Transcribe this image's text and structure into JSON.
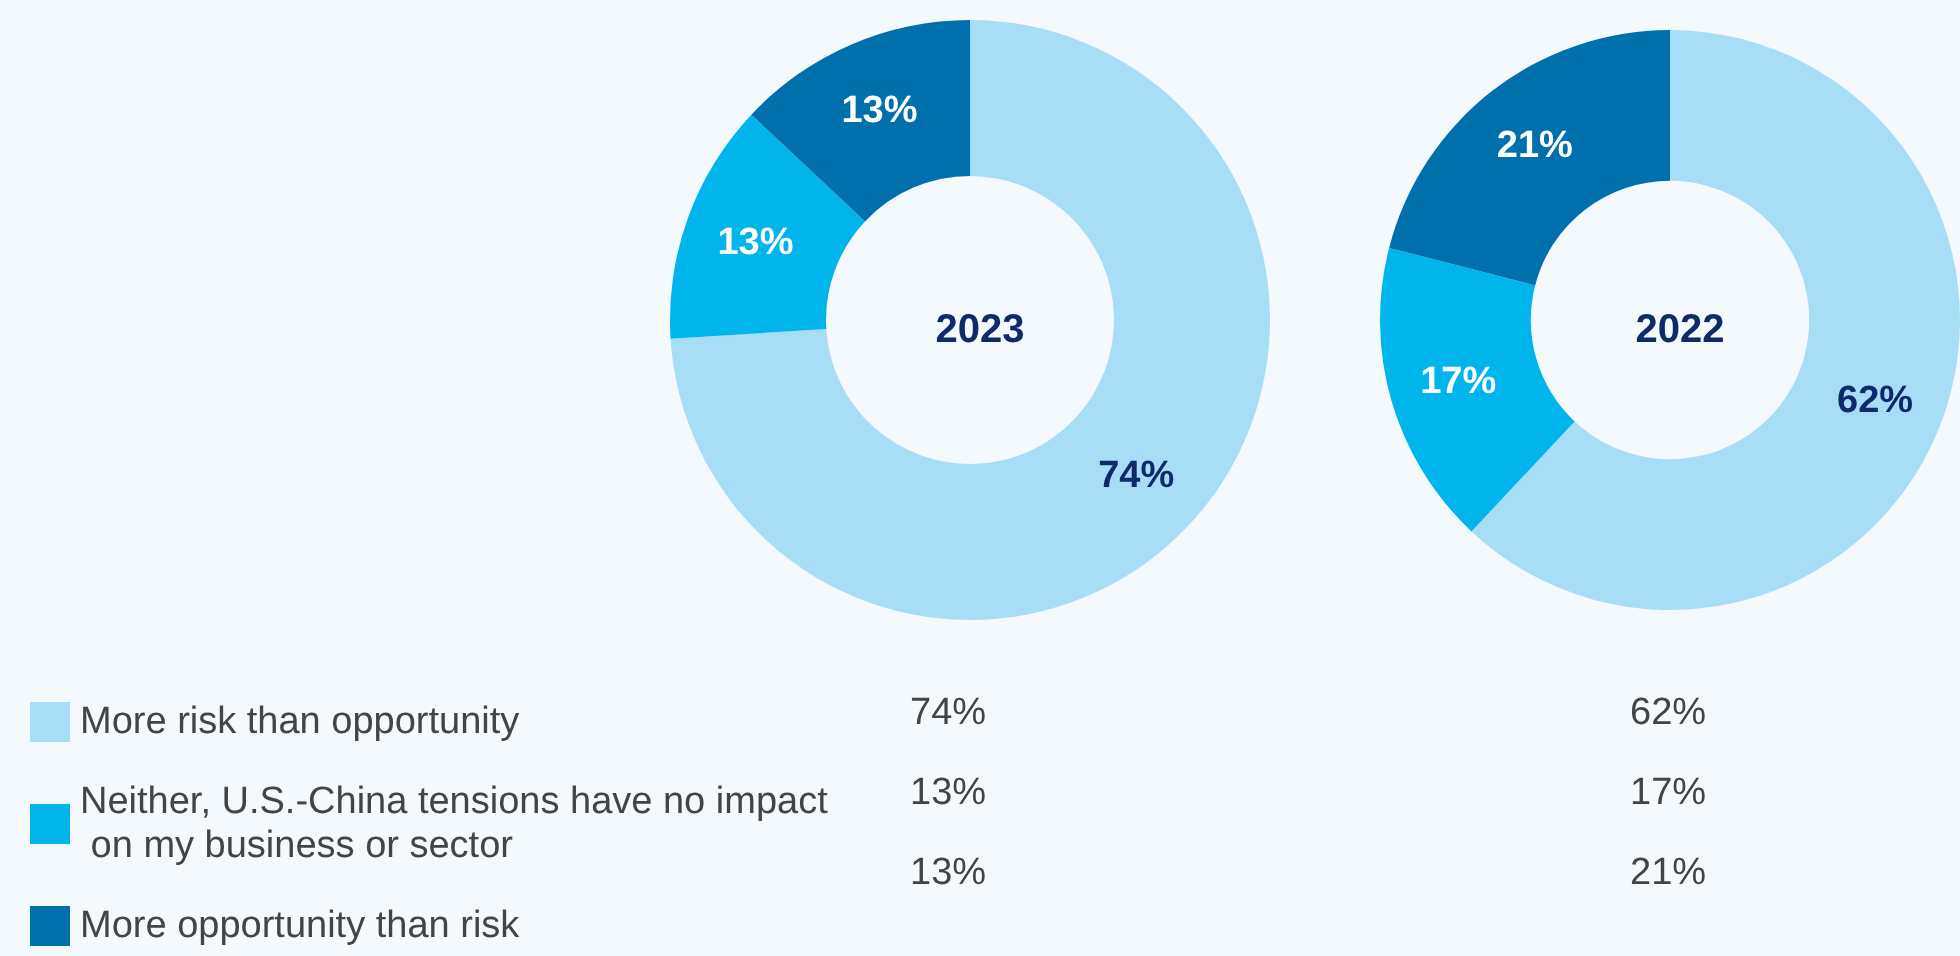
{
  "chart_data": {
    "type": "donut",
    "categories": [
      "More risk than opportunity",
      "Neither, U.S.-China tensions have no impact on my business or sector",
      "More opportunity than risk"
    ],
    "colors": [
      "#a8ddf7",
      "#00b5eb",
      "#0070ad"
    ],
    "legend": "bottom left",
    "series": [
      {
        "name": "2023",
        "values": [
          74,
          13,
          13
        ],
        "value_labels": [
          "74%",
          "13%",
          "13%"
        ]
      },
      {
        "name": "2022",
        "values": [
          62,
          17,
          21
        ],
        "value_labels": [
          "62%",
          "17%",
          "21%"
        ]
      }
    ]
  }
}
